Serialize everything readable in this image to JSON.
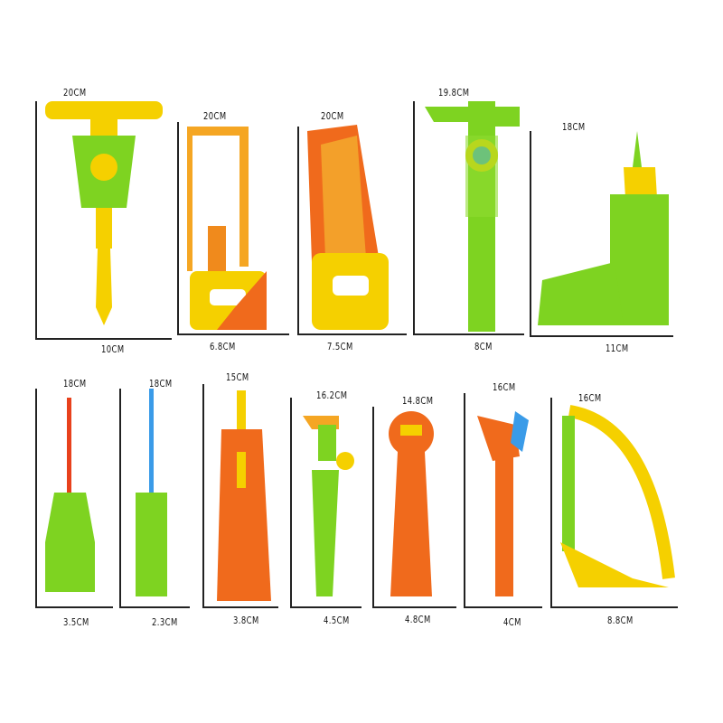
{
  "tools": [
    {
      "name": "t-handle-screwdriver",
      "height": "20CM",
      "width": "10CM"
    },
    {
      "name": "hacksaw",
      "height": "20CM",
      "width": "6.8CM"
    },
    {
      "name": "hand-saw",
      "height": "20CM",
      "width": "7.5CM"
    },
    {
      "name": "caliper",
      "height": "19.8CM",
      "width": "8CM"
    },
    {
      "name": "drill",
      "height": "18CM",
      "width": "11CM"
    },
    {
      "name": "phillips-screwdriver",
      "height": "18CM",
      "width": "3.5CM"
    },
    {
      "name": "flat-screwdriver",
      "height": "18CM",
      "width": "2.3CM"
    },
    {
      "name": "utility-knife",
      "height": "15CM",
      "width": "3.8CM"
    },
    {
      "name": "pipe-wrench",
      "height": "16.2CM",
      "width": "4.5CM"
    },
    {
      "name": "spanner",
      "height": "14.8CM",
      "width": "4.8CM"
    },
    {
      "name": "adjustable-wrench",
      "height": "16CM",
      "width": "4CM"
    },
    {
      "name": "bow-saw",
      "height": "16CM",
      "width": "8.8CM"
    }
  ],
  "colors": {
    "green": "#7ed321",
    "yellow": "#f5d000",
    "orange": "#f08a1c",
    "red": "#e8411c",
    "blue": "#3a9be8"
  }
}
